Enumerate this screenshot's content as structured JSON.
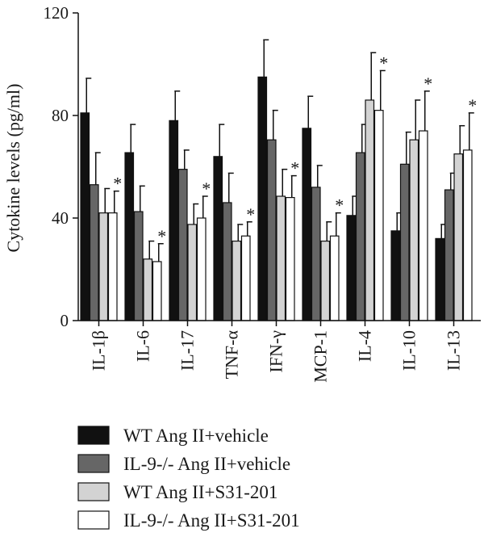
{
  "chart_data": {
    "type": "bar",
    "title": "",
    "xlabel": "",
    "ylabel": "Cytokine levels (pg/ml)",
    "ylim": [
      0,
      120
    ],
    "yticks": [
      0,
      40,
      80,
      120
    ],
    "categories": [
      "IL-1β",
      "IL-6",
      "IL-17",
      "TNF-α",
      "IFN-γ",
      "MCP-1",
      "IL-4",
      "IL-10",
      "IL-13"
    ],
    "series": [
      {
        "name": "WT Ang II+vehicle",
        "color": "#111111",
        "values": [
          81,
          65.5,
          78,
          64,
          95,
          75,
          41,
          35,
          32
        ],
        "errors": [
          13.5,
          11,
          11.5,
          12.5,
          14.5,
          12.5,
          7.5,
          7,
          5.5
        ]
      },
      {
        "name": "IL-9-/- Ang II+vehicle",
        "color": "#666666",
        "values": [
          53,
          42.5,
          59,
          46,
          70.5,
          52,
          65.5,
          61,
          51
        ],
        "errors": [
          12.5,
          10,
          7.5,
          11.5,
          11.5,
          8.5,
          11,
          12.5,
          6.5
        ]
      },
      {
        "name": "WT Ang II+S31-201",
        "color": "#d3d3d3",
        "values": [
          42,
          24,
          37.5,
          31,
          48.5,
          31,
          86,
          70.5,
          65
        ],
        "errors": [
          9.5,
          7,
          8,
          6.5,
          10.5,
          7.5,
          18.5,
          15.5,
          11
        ]
      },
      {
        "name": "IL-9-/- Ang II+S31-201",
        "color": "#ffffff",
        "values": [
          42,
          23,
          40,
          33,
          48,
          33,
          82,
          74,
          66.5
        ],
        "errors": [
          8.5,
          7,
          8.5,
          5.5,
          8.5,
          9,
          15.5,
          15.5,
          14.5
        ]
      }
    ],
    "significance": [
      "*",
      "*",
      "*",
      "*",
      "*",
      "*",
      "*",
      "*",
      "*"
    ],
    "grid": false,
    "legend_position": "bottom"
  }
}
